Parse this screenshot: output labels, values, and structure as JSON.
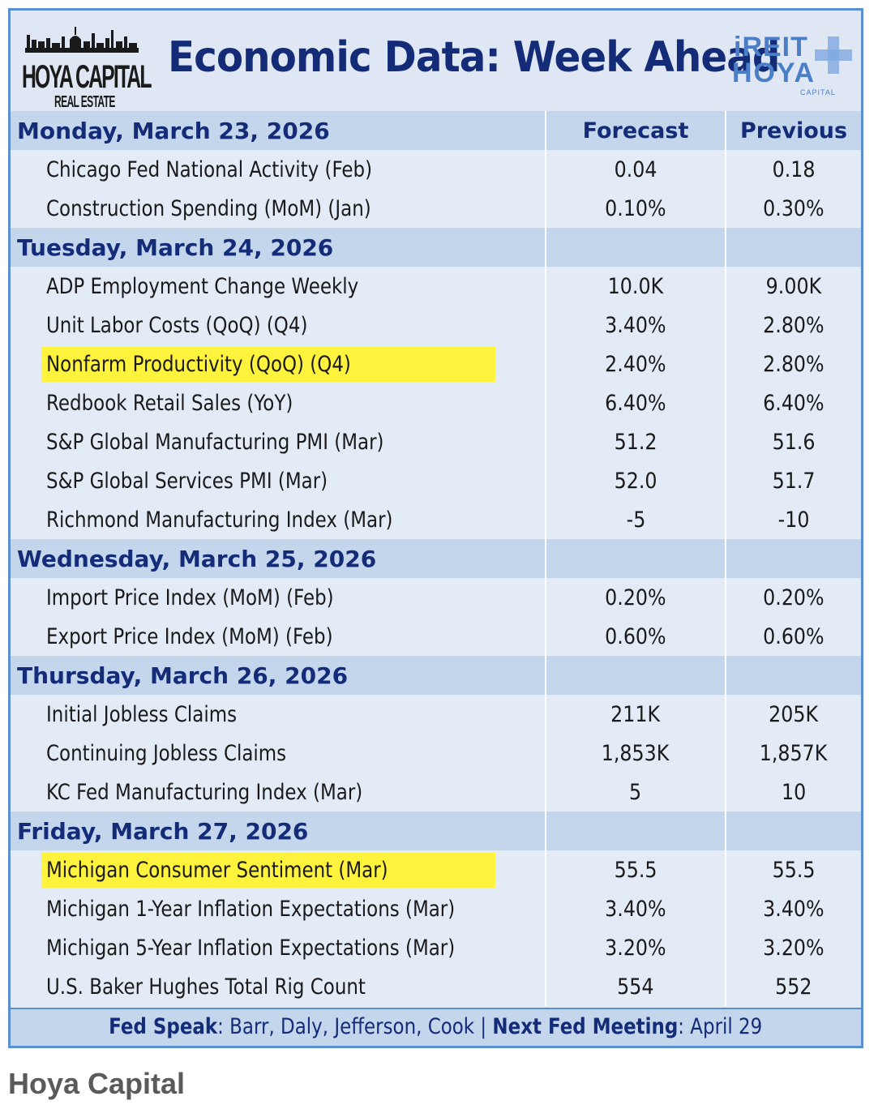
{
  "header": {
    "brand_main": "HOYA CAPITAL",
    "brand_sub": "REAL ESTATE",
    "title": "Economic Data: Week Ahead",
    "right_logo_line1": "iREIT",
    "right_logo_line2": "HOYA",
    "right_logo_line3": "CAPITAL"
  },
  "columns": {
    "forecast": "Forecast",
    "previous": "Previous"
  },
  "days": [
    {
      "label": "Monday, March 23, 2026",
      "rows": [
        {
          "name": "Chicago Fed National Activity (Feb)",
          "forecast": "0.04",
          "previous": "0.18",
          "highlight": false
        },
        {
          "name": "Construction Spending (MoM) (Jan)",
          "forecast": "0.10%",
          "previous": "0.30%",
          "highlight": false
        }
      ]
    },
    {
      "label": "Tuesday, March 24, 2026",
      "rows": [
        {
          "name": "ADP Employment Change Weekly",
          "forecast": "10.0K",
          "previous": "9.00K",
          "highlight": false
        },
        {
          "name": "Unit Labor Costs (QoQ) (Q4)",
          "forecast": "3.40%",
          "previous": "2.80%",
          "highlight": false
        },
        {
          "name": "Nonfarm Productivity (QoQ) (Q4)",
          "forecast": "2.40%",
          "previous": "2.80%",
          "highlight": true
        },
        {
          "name": "Redbook Retail Sales (YoY)",
          "forecast": "6.40%",
          "previous": "6.40%",
          "highlight": false
        },
        {
          "name": "S&P Global Manufacturing PMI (Mar)",
          "forecast": "51.2",
          "previous": "51.6",
          "highlight": false
        },
        {
          "name": "S&P Global Services PMI (Mar)",
          "forecast": "52.0",
          "previous": "51.7",
          "highlight": false
        },
        {
          "name": "Richmond Manufacturing Index (Mar)",
          "forecast": "-5",
          "previous": "-10",
          "highlight": false
        }
      ]
    },
    {
      "label": "Wednesday, March 25, 2026",
      "rows": [
        {
          "name": "Import Price Index (MoM) (Feb)",
          "forecast": "0.20%",
          "previous": "0.20%",
          "highlight": false
        },
        {
          "name": "Export Price Index (MoM) (Feb)",
          "forecast": "0.60%",
          "previous": "0.60%",
          "highlight": false
        }
      ]
    },
    {
      "label": "Thursday, March 26, 2026",
      "rows": [
        {
          "name": "Initial Jobless Claims",
          "forecast": "211K",
          "previous": "205K",
          "highlight": false
        },
        {
          "name": "Continuing Jobless Claims",
          "forecast": "1,853K",
          "previous": "1,857K",
          "highlight": false
        },
        {
          "name": "KC Fed Manufacturing Index (Mar)",
          "forecast": "5",
          "previous": "10",
          "highlight": false
        }
      ]
    },
    {
      "label": "Friday, March 27, 2026",
      "rows": [
        {
          "name": "Michigan Consumer Sentiment (Mar)",
          "forecast": "55.5",
          "previous": "55.5",
          "highlight": true
        },
        {
          "name": "Michigan 1-Year Inflation Expectations (Mar)",
          "forecast": "3.40%",
          "previous": "3.40%",
          "highlight": false
        },
        {
          "name": "Michigan 5-Year Inflation Expectations (Mar)",
          "forecast": "3.20%",
          "previous": "3.20%",
          "highlight": false
        },
        {
          "name": "U.S. Baker Hughes Total Rig Count",
          "forecast": "554",
          "previous": "552",
          "highlight": false
        }
      ]
    }
  ],
  "footer": {
    "fed_speak_label": "Fed Speak",
    "fed_speak_value": ": Barr, Daly, Jefferson, Cook | ",
    "next_meeting_label": "Next Fed Meeting",
    "next_meeting_value": ": April 29"
  },
  "caption": "Hoya Capital",
  "colors": {
    "title_navy": "#142c78",
    "header_band": "#c4d6ec",
    "row_bg": "#e3ebf7",
    "border_blue": "#5b8fd0",
    "highlight_yellow": "#fff33d",
    "logo_blue": "#4a7fc8"
  }
}
